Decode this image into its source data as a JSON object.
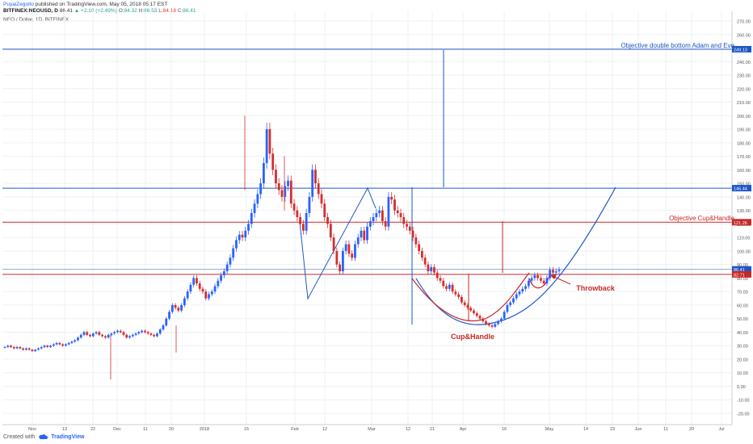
{
  "header": {
    "author": "PuyaiZegolto",
    "published_text": "published on TradingView.com, May 05, 2018 05:17 EST",
    "symbol": "BITFINEX:NEOUSD, D",
    "last": "86.41",
    "change": "▲ +2.10 (+2.49%)",
    "o_label": "O:",
    "o_value": "84.32",
    "h_label": "H:",
    "h_value": "86.53",
    "l_label": "L:",
    "l_value": "84.18",
    "c_label": "C:",
    "c_value": "86.41",
    "legend": "NEO / Dollar, 1D, BITFINEX"
  },
  "footer": {
    "created_with": "Created with",
    "brand": "TradingView"
  },
  "colors": {
    "up": "#2962ff",
    "down": "#d32f2f",
    "blue_line": "#1e56c6",
    "red_line": "#c62828",
    "grid": "#eef0f3",
    "axis_text": "#555555"
  },
  "chart_data": {
    "type": "candlestick",
    "title": "NEO / Dollar, 1D, BITFINEX",
    "ylim": [
      -30,
      275
    ],
    "yticks": [
      -20,
      -10,
      0,
      10,
      20,
      30,
      40,
      50,
      60,
      70,
      80,
      90,
      100,
      110,
      120,
      130,
      140,
      150,
      160,
      170,
      180,
      190,
      200,
      210,
      220,
      230,
      240,
      250,
      260,
      270
    ],
    "xtick_labels": [
      "Nov",
      "13",
      "22",
      "Dec",
      "11",
      "20",
      "2018",
      "15",
      "Feb",
      "12",
      "Mar",
      "12",
      "21",
      "Apr",
      "16",
      "May",
      "14",
      "23",
      "Jun",
      "11",
      "20",
      "Jul"
    ],
    "price_tags": [
      {
        "value": 249.13,
        "label": "249.13",
        "color": "#1e56c6"
      },
      {
        "value": 146.44,
        "label": "146.44",
        "color": "#1e56c6"
      },
      {
        "value": 121.26,
        "label": "121.26",
        "color": "#c62828"
      },
      {
        "value": 86.41,
        "label": "86.41",
        "color": "#1e56c6"
      },
      {
        "value": 82.71,
        "label": "82.71",
        "color": "#c62828"
      }
    ],
    "levels": [
      {
        "value": 249.13,
        "color": "#1e56c6"
      },
      {
        "value": 146.44,
        "color": "#1e56c6"
      },
      {
        "value": 121.26,
        "color": "#c62828"
      },
      {
        "value": 86.41,
        "color": "#8fa8d8"
      },
      {
        "value": 82.71,
        "color": "#c62828"
      }
    ],
    "annotations": {
      "double_bottom": "Objective double bottom Adam and Eve",
      "cup_handle_objective": "Objective Cup&Handle",
      "cup_handle": "Cup&Handle",
      "throwback": "Throwback"
    },
    "closes": [
      29,
      30,
      29,
      28,
      29,
      28,
      27,
      28,
      27,
      26,
      27,
      28,
      29,
      30,
      29,
      30,
      31,
      32,
      31,
      30,
      31,
      32,
      33,
      34,
      36,
      38,
      40,
      38,
      37,
      39,
      40,
      38,
      37,
      36,
      38,
      39,
      40,
      41,
      40,
      38,
      36,
      37,
      38,
      39,
      40,
      41,
      40,
      39,
      38,
      37,
      39,
      42,
      45,
      50,
      55,
      60,
      58,
      56,
      60,
      65,
      70,
      75,
      80,
      76,
      72,
      70,
      65,
      68,
      70,
      74,
      78,
      82,
      85,
      90,
      95,
      102,
      108,
      112,
      110,
      115,
      120,
      128,
      135,
      142,
      150,
      165,
      190,
      172,
      160,
      150,
      145,
      140,
      148,
      152,
      135,
      130,
      125,
      120,
      115,
      128,
      140,
      160,
      150,
      142,
      135,
      125,
      120,
      110,
      100,
      90,
      85,
      100,
      105,
      98,
      95,
      105,
      110,
      115,
      108,
      118,
      122,
      125,
      128,
      130,
      122,
      118,
      140,
      138,
      130,
      128,
      125,
      120,
      118,
      115,
      110,
      105,
      100,
      95,
      90,
      85,
      88,
      84,
      80,
      78,
      74,
      72,
      75,
      70,
      68,
      66,
      62,
      60,
      58,
      56,
      54,
      52,
      50,
      48,
      46,
      45,
      44,
      46,
      48,
      50,
      55,
      60,
      62,
      65,
      68,
      70,
      72,
      74,
      78,
      80,
      82,
      80,
      78,
      76,
      80,
      86,
      84,
      85,
      86
    ]
  }
}
